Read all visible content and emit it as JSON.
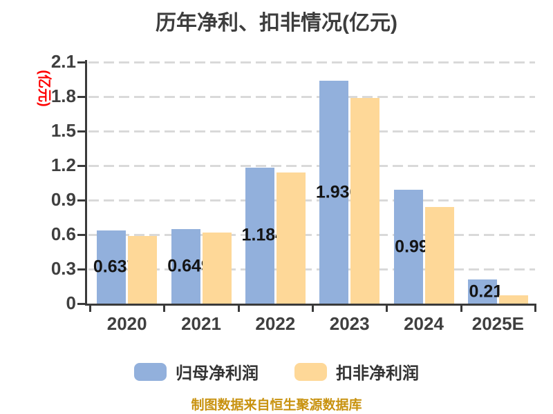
{
  "title": "历年净利、扣非情况(亿元)",
  "footer": "制图数据来自恒生聚源数据库",
  "colors": {
    "title_text": "#3d3d3d",
    "axis_text": "#3f3f3f",
    "axis_line": "#3a3a3a",
    "gridline": "#d9d9d9",
    "bar_label": "#141414",
    "y_unit_label": "#fe0000",
    "footer_text": "#c8920f",
    "series_blue": "#92b0dc",
    "series_yellow": "#fed898"
  },
  "chart_data": {
    "type": "bar",
    "title": "历年净利、扣非情况(亿元)",
    "ylabel": "(亿元)",
    "xlabel": "",
    "ylim": [
      0,
      2.1
    ],
    "yticks": [
      0,
      0.3,
      0.6,
      0.9,
      1.2,
      1.5,
      1.8,
      2.1
    ],
    "grid": "horizontal-dashed",
    "legend_position": "bottom",
    "categories": [
      "2020",
      "2021",
      "2022",
      "2023",
      "2024",
      "2025E"
    ],
    "series": [
      {
        "name": "归母净利润",
        "color": "#92b0dc",
        "values": [
          0.637,
          0.649,
          1.184,
          1.936,
          0.99,
          0.21
        ],
        "labels": [
          "0.637",
          "0.649",
          "1.184",
          "1.936",
          "0.99",
          "0.21"
        ]
      },
      {
        "name": "扣非净利润",
        "color": "#fed898",
        "values": [
          0.59,
          0.62,
          1.14,
          1.79,
          0.84,
          0.07
        ],
        "labels": []
      }
    ]
  }
}
